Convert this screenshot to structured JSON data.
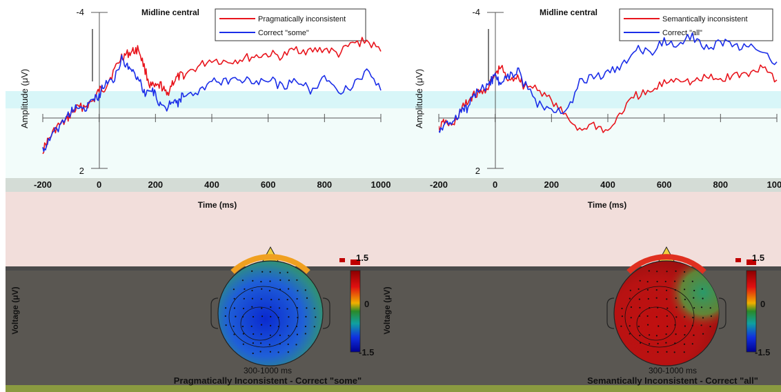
{
  "chart_data": [
    {
      "type": "line",
      "title": "Midline central",
      "xlabel": "Time (ms)",
      "ylabel": "Amplitude (μV)",
      "xlim": [
        -200,
        1000
      ],
      "ylim": [
        -4,
        2
      ],
      "y_axis_inverted": true,
      "x_ticks": [
        "-200",
        "0",
        "200",
        "400",
        "600",
        "800",
        "1000"
      ],
      "y_ticks": [
        "-4",
        "2"
      ],
      "legend_position": "top",
      "series": [
        {
          "name": "Pragmatically inconsistent",
          "color": "#e8141c",
          "x": [
            -200,
            -180,
            -150,
            -120,
            -100,
            -80,
            -50,
            -20,
            0,
            20,
            50,
            80,
            100,
            120,
            140,
            160,
            180,
            200,
            220,
            240,
            260,
            280,
            300,
            350,
            400,
            450,
            500,
            550,
            600,
            650,
            700,
            750,
            800,
            850,
            900,
            950,
            1000
          ],
          "values": [
            1.3,
            0.9,
            0.4,
            0.2,
            -0.1,
            -0.3,
            -0.4,
            -0.6,
            -1.0,
            -1.1,
            -1.7,
            -2.3,
            -2.4,
            -2.5,
            -2.6,
            -1.9,
            -1.2,
            -1.1,
            -1.2,
            -0.8,
            -1.3,
            -1.5,
            -1.6,
            -1.9,
            -2.2,
            -2.1,
            -2.2,
            -2.3,
            -2.4,
            -2.3,
            -2.6,
            -2.5,
            -2.6,
            -2.4,
            -2.8,
            -2.9,
            -2.5
          ]
        },
        {
          "name": "Correct \"some\"",
          "color": "#1b2ee8",
          "x": [
            -200,
            -180,
            -150,
            -120,
            -100,
            -80,
            -50,
            -20,
            0,
            20,
            50,
            80,
            100,
            120,
            140,
            160,
            180,
            200,
            220,
            240,
            260,
            280,
            300,
            350,
            400,
            450,
            500,
            550,
            600,
            650,
            700,
            750,
            800,
            850,
            900,
            950,
            1000
          ],
          "values": [
            1.3,
            1.0,
            0.5,
            0.1,
            -0.2,
            -0.3,
            -0.3,
            -0.6,
            -0.8,
            -1.3,
            -1.4,
            -2.2,
            -1.9,
            -1.7,
            -1.5,
            -0.9,
            -1.0,
            -0.9,
            -0.3,
            -0.3,
            -0.7,
            -0.5,
            -0.9,
            -0.8,
            -1.4,
            -1.3,
            -1.5,
            -1.2,
            -1.5,
            -1.1,
            -1.5,
            -1.0,
            -1.5,
            -0.9,
            -1.2,
            -1.8,
            -1.0
          ]
        }
      ],
      "topomap": {
        "time_window": "300-1000 ms",
        "caption": "Pragmatically Inconsistent - Correct \"some\"",
        "colorbar_label": "Voltage (μV)",
        "colorbar_ticks": [
          "1.5",
          "0",
          "-1.5"
        ],
        "colorbar_range": [
          -1.5,
          1.5
        ],
        "dominant_value": "negative"
      }
    },
    {
      "type": "line",
      "title": "Midline central",
      "xlabel": "Time (ms)",
      "ylabel": "Amplitude (μV)",
      "xlim": [
        -200,
        1000
      ],
      "ylim": [
        -4,
        2
      ],
      "y_axis_inverted": true,
      "x_ticks": [
        "-200",
        "0",
        "200",
        "400",
        "600",
        "800",
        "1000"
      ],
      "y_ticks": [
        "-4",
        "2"
      ],
      "legend_position": "top",
      "series": [
        {
          "name": "Semantically inconsistent",
          "color": "#e8141c",
          "x": [
            -200,
            -180,
            -150,
            -120,
            -100,
            -80,
            -50,
            -20,
            0,
            20,
            50,
            80,
            100,
            150,
            200,
            250,
            300,
            350,
            400,
            450,
            500,
            550,
            600,
            650,
            700,
            750,
            800,
            850,
            900,
            950,
            1000
          ],
          "values": [
            0.5,
            0.2,
            0.4,
            -0.3,
            -0.5,
            -0.8,
            -0.9,
            -1.2,
            -1.6,
            -1.9,
            -1.3,
            -1.6,
            -1.2,
            -1.1,
            -0.6,
            0.0,
            0.5,
            0.3,
            0.6,
            -0.2,
            -0.8,
            -0.9,
            -1.3,
            -1.5,
            -1.3,
            -1.5,
            -1.4,
            -1.6,
            -1.6,
            -2.0,
            -1.4
          ]
        },
        {
          "name": "Correct \"all\"",
          "color": "#1b2ee8",
          "x": [
            -200,
            -180,
            -150,
            -120,
            -100,
            -80,
            -50,
            -20,
            0,
            20,
            50,
            80,
            100,
            150,
            200,
            250,
            300,
            350,
            400,
            450,
            500,
            550,
            600,
            650,
            700,
            750,
            800,
            850,
            900,
            950,
            1000
          ],
          "values": [
            0.6,
            0.3,
            0.3,
            -0.3,
            -0.3,
            -0.8,
            -1.0,
            -1.3,
            -1.5,
            -1.3,
            -1.5,
            -1.8,
            -1.3,
            -0.5,
            -0.3,
            -0.1,
            -1.3,
            -1.5,
            -1.7,
            -1.9,
            -2.6,
            -2.4,
            -2.9,
            -2.8,
            -3.1,
            -2.6,
            -2.9,
            -2.6,
            -2.8,
            -2.4,
            -2.1
          ]
        }
      ],
      "topomap": {
        "time_window": "300-1000 ms",
        "caption": "Semantically Inconsistent - Correct \"all\"",
        "colorbar_label": "Voltage (μV)",
        "colorbar_ticks": [
          "1.5",
          "0",
          "-1.5"
        ],
        "colorbar_range": [
          -1.5,
          1.5
        ],
        "dominant_value": "positive"
      }
    }
  ]
}
